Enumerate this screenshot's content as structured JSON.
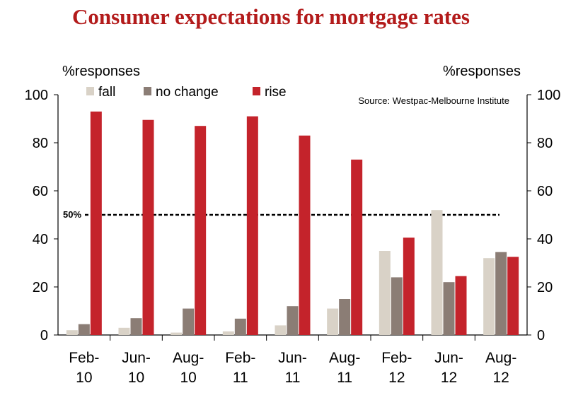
{
  "chart_data": {
    "type": "bar",
    "title": "Consumer expectations for mortgage rates",
    "ylabel_left": "%responses",
    "ylabel_right": "%responses",
    "ylim": [
      0,
      100
    ],
    "yticks": [
      0,
      20,
      40,
      60,
      80,
      100
    ],
    "source": "Source: Westpac-Melbourne Institute",
    "categories": [
      [
        "Feb-",
        "10"
      ],
      [
        "Jun-",
        "10"
      ],
      [
        "Aug-",
        "10"
      ],
      [
        "Feb-",
        "11"
      ],
      [
        "Jun-",
        "11"
      ],
      [
        "Aug-",
        "11"
      ],
      [
        "Feb-",
        "12"
      ],
      [
        "Jun-",
        "12"
      ],
      [
        "Aug-",
        "12"
      ]
    ],
    "series": [
      {
        "name": "fall",
        "color": "#d9d2c7",
        "values": [
          2,
          3,
          1,
          1.5,
          4,
          11,
          35,
          52,
          32
        ]
      },
      {
        "name": "no change",
        "color": "#8b7d75",
        "values": [
          4.5,
          7,
          11,
          6.8,
          12,
          15,
          24,
          22,
          34.5
        ]
      },
      {
        "name": "rise",
        "color": "#c4232b",
        "values": [
          93,
          89.5,
          87,
          91,
          83,
          73,
          40.5,
          24.5,
          32.5
        ]
      }
    ],
    "reference_line": {
      "value": 50,
      "label": "50%",
      "style": "dashed"
    },
    "legend_position": "top-left",
    "grid": false
  }
}
